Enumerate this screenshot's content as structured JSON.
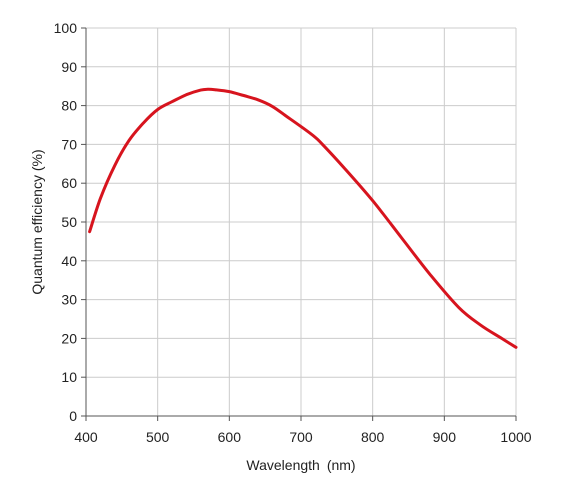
{
  "chart_data": {
    "type": "line",
    "xlabel": "Wavelength (nm)",
    "ylabel": "Quantum efficiency (%)",
    "xlim": [
      400,
      1000
    ],
    "ylim": [
      0,
      100
    ],
    "x_ticks": [
      400,
      500,
      600,
      700,
      800,
      900,
      1000
    ],
    "y_ticks": [
      0,
      10,
      20,
      30,
      40,
      50,
      60,
      70,
      80,
      90,
      100
    ],
    "grid": true,
    "series": [
      {
        "color": "#d7141e",
        "x": [
          405,
          420,
          440,
          460,
          480,
          500,
          520,
          540,
          560,
          570,
          580,
          600,
          620,
          640,
          660,
          680,
          700,
          720,
          730,
          760,
          800,
          840,
          880,
          920,
          950,
          980,
          1000
        ],
        "y": [
          47.5,
          56,
          64.5,
          71,
          75.5,
          79,
          81,
          82.8,
          84,
          84.2,
          84.1,
          83.6,
          82.6,
          81.5,
          79.8,
          77.2,
          74.6,
          71.8,
          70,
          64,
          55.5,
          46,
          36.5,
          28,
          23.5,
          20,
          17.7
        ]
      }
    ]
  },
  "colors": {
    "grid": "#cccccc",
    "axis": "#555555",
    "line": "#d7141e"
  }
}
